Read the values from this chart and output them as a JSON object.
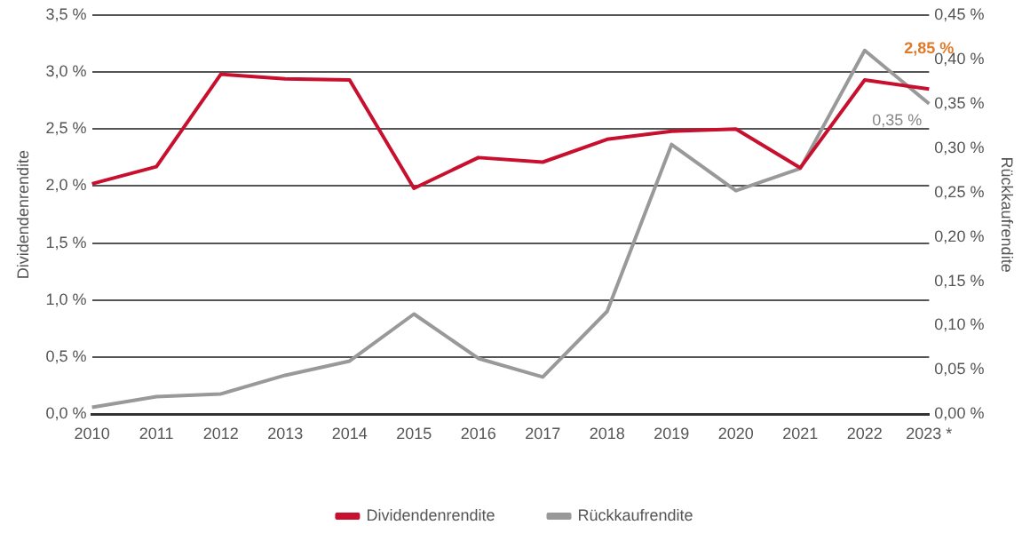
{
  "chart_data": {
    "type": "line",
    "categories": [
      "2010",
      "2011",
      "2012",
      "2013",
      "2014",
      "2015",
      "2016",
      "2017",
      "2018",
      "2019",
      "2020",
      "2021",
      "2022",
      "2023 *"
    ],
    "ylabel": "Dividendenrendite",
    "y2label": "Rückkaufrendite",
    "series": [
      {
        "name": "Dividendenrendite",
        "color": "#c8102e",
        "values": [
          2.02,
          2.17,
          2.98,
          2.94,
          2.93,
          1.98,
          2.25,
          2.21,
          2.41,
          2.48,
          2.5,
          2.16,
          2.93,
          2.85
        ],
        "value_labels": [
          null,
          null,
          null,
          null,
          null,
          null,
          null,
          null,
          null,
          null,
          null,
          null,
          null,
          "2,85 %"
        ]
      },
      {
        "name": "Rückkaufrendite",
        "color": "#999999",
        "axis": "y2",
        "values": [
          0.008,
          0.02,
          0.023,
          0.044,
          0.06,
          0.113,
          0.063,
          0.042,
          0.116,
          0.304,
          0.252,
          0.277,
          0.41,
          0.35
        ],
        "value_labels": [
          null,
          null,
          null,
          null,
          null,
          null,
          null,
          null,
          null,
          null,
          null,
          null,
          null,
          "0,35 %"
        ]
      }
    ],
    "ylim": [
      0,
      3.5
    ],
    "yticks": [
      {
        "value": 0,
        "label": "0,0 %"
      },
      {
        "value": 0.5,
        "label": "0,5 %"
      },
      {
        "value": 1,
        "label": "1,0 %"
      },
      {
        "value": 1.5,
        "label": "1,5 %"
      },
      {
        "value": 2,
        "label": "2,0 %"
      },
      {
        "value": 2.5,
        "label": "2,5 %"
      },
      {
        "value": 3,
        "label": "3,0 %"
      },
      {
        "value": 3.5,
        "label": "3,5 %"
      }
    ],
    "y2lim": [
      0,
      0.45
    ],
    "y2ticks": [
      {
        "value": 0,
        "label": "0,00 %"
      },
      {
        "value": 0.05,
        "label": "0,05 %"
      },
      {
        "value": 0.1,
        "label": "0,10 %"
      },
      {
        "value": 0.15,
        "label": "0,15 %"
      },
      {
        "value": 0.2,
        "label": "0,20 %"
      },
      {
        "value": 0.25,
        "label": "0,25 %"
      },
      {
        "value": 0.3,
        "label": "0,30 %"
      },
      {
        "value": 0.35,
        "label": "0,35 %"
      },
      {
        "value": 0.4,
        "label": "0,40 %"
      },
      {
        "value": 0.45,
        "label": "0,45 %"
      }
    ],
    "grid": "y",
    "legend": "bottom",
    "marker": "none",
    "line_style": "solid"
  }
}
